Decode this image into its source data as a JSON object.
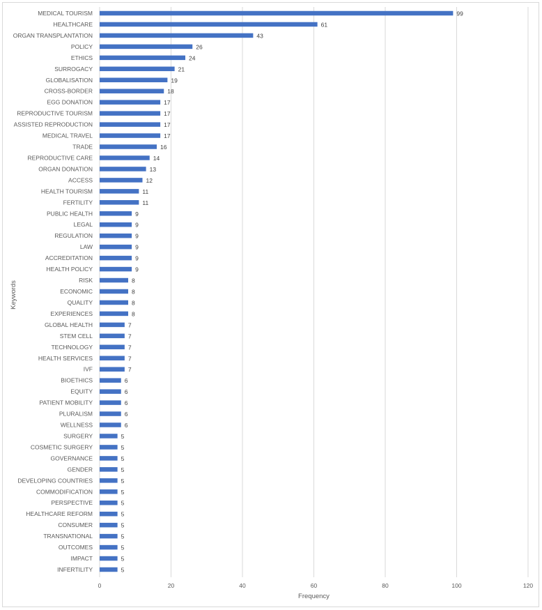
{
  "chart_data": {
    "type": "bar",
    "orientation": "horizontal",
    "xlabel": "Frequency",
    "ylabel": "Keywords",
    "xlim": [
      0,
      120
    ],
    "x_ticks": [
      0,
      20,
      40,
      60,
      80,
      100,
      120
    ],
    "grid": true,
    "data_labels": true,
    "bar_color": "#4472C4",
    "categories": [
      "MEDICAL TOURISM",
      "HEALTHCARE",
      "ORGAN TRANSPLANTATION",
      "POLICY",
      "ETHICS",
      "SURROGACY",
      "GLOBALISATION",
      "CROSS-BORDER",
      "EGG DONATION",
      "REPRODUCTIVE TOURISM",
      "ASSISTED REPRODUCTION",
      "MEDICAL TRAVEL",
      "TRADE",
      "REPRODUCTIVE CARE",
      "ORGAN DONATION",
      "ACCESS",
      "HEALTH TOURISM",
      "FERTILITY",
      "PUBLIC HEALTH",
      "LEGAL",
      "REGULATION",
      "LAW",
      "ACCREDITATION",
      "HEALTH POLICY",
      "RISK",
      "ECONOMIC",
      "QUALITY",
      "EXPERIENCES",
      "GLOBAL HEALTH",
      "STEM CELL",
      "TECHNOLOGY",
      "HEALTH SERVICES",
      "IVF",
      "BIOETHICS",
      "EQUITY",
      "PATIENT MOBILITY",
      "PLURALISM",
      "WELLNESS",
      "SURGERY",
      "COSMETIC SURGERY",
      "GOVERNANCE",
      "GENDER",
      "DEVELOPING COUNTRIES",
      "COMMODIFICATION",
      "PERSPECTIVE",
      "HEALTHCARE REFORM",
      "CONSUMER",
      "TRANSNATIONAL",
      "OUTCOMES",
      "IMPACT",
      "INFERTILITY"
    ],
    "values": [
      99,
      61,
      43,
      26,
      24,
      21,
      19,
      18,
      17,
      17,
      17,
      17,
      16,
      14,
      13,
      12,
      11,
      11,
      9,
      9,
      9,
      9,
      9,
      9,
      8,
      8,
      8,
      8,
      7,
      7,
      7,
      7,
      7,
      6,
      6,
      6,
      6,
      6,
      5,
      5,
      5,
      5,
      5,
      5,
      5,
      5,
      5,
      5,
      5,
      5,
      5
    ]
  }
}
